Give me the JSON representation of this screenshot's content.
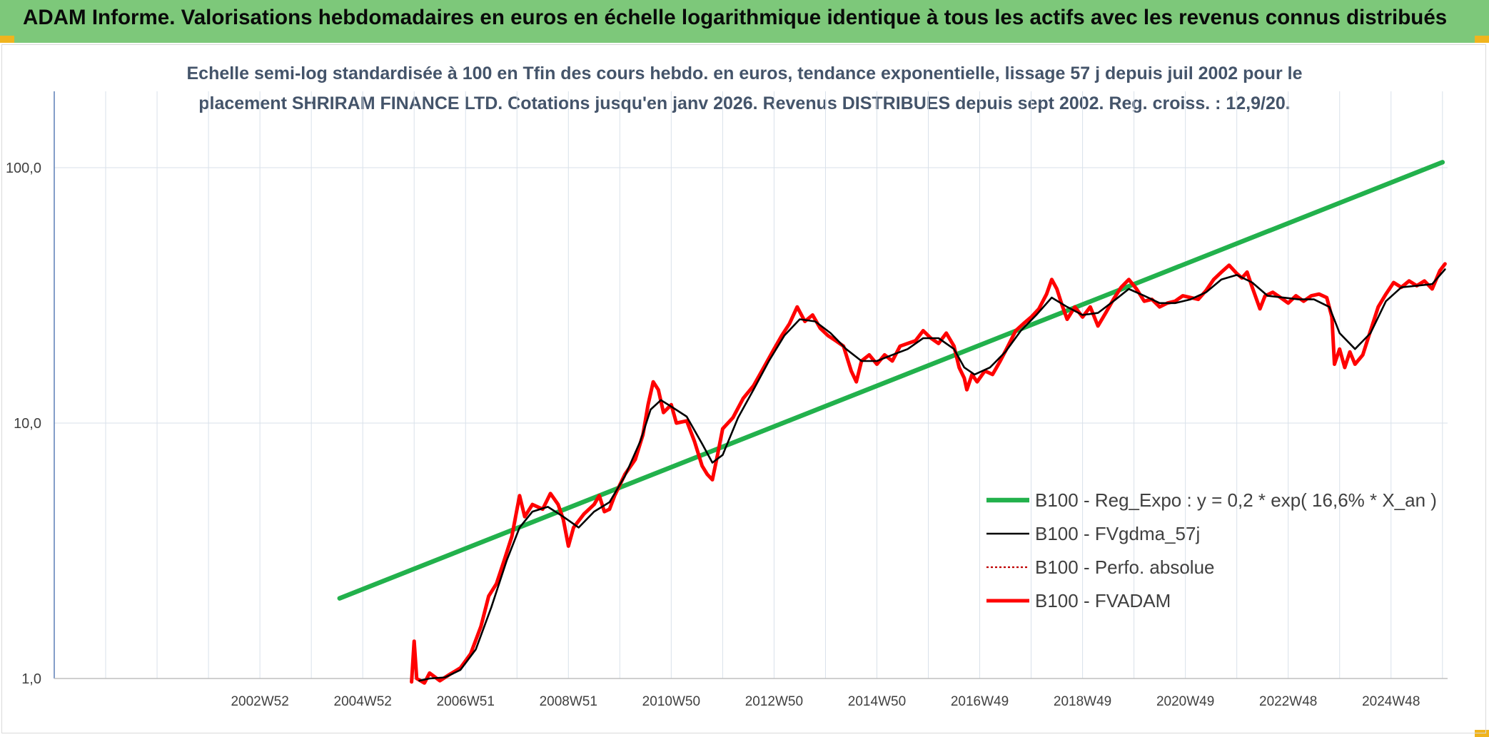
{
  "header": {
    "title": "ADAM Informe. Valorisations hebdomadaires en euros en échelle logarithmique identique à tous les actifs avec les revenus connus distribués"
  },
  "colors": {
    "header_bg": "#7dc87a",
    "regression": "#22b14c",
    "smoothed": "#000000",
    "absolute": "#c00000",
    "fvadam": "#ff0000",
    "grid": "#d9e1ea"
  },
  "chart_data": {
    "type": "line",
    "subtitle": [
      "Echelle semi-log standardisée à 100 en Tfin des cours hebdo. en euros, tendance exponentielle, lissage 57 j depuis juil 2002 pour le",
      "placement SHRIRAM FINANCE LTD. Cotations jusqu'en janv 2026. Revenus DISTRIBUES depuis sept 2002. Reg. croiss. : 12,9/20."
    ],
    "y_scale": "log",
    "ylim": [
      1,
      100
    ],
    "y_ticks": [
      "100,0",
      "10,0",
      "1,0"
    ],
    "x_range": [
      1999.0,
      2026.1
    ],
    "x_ticks": [
      {
        "label": "2002W52",
        "x": 2003.0
      },
      {
        "label": "2004W52",
        "x": 2005.0
      },
      {
        "label": "2006W51",
        "x": 2007.0
      },
      {
        "label": "2008W51",
        "x": 2009.0
      },
      {
        "label": "2010W50",
        "x": 2011.0
      },
      {
        "label": "2012W50",
        "x": 2013.0
      },
      {
        "label": "2014W50",
        "x": 2015.0
      },
      {
        "label": "2016W49",
        "x": 2017.0
      },
      {
        "label": "2018W49",
        "x": 2019.0
      },
      {
        "label": "2020W49",
        "x": 2021.0
      },
      {
        "label": "2022W48",
        "x": 2023.0
      },
      {
        "label": "2024W48",
        "x": 2025.0
      }
    ],
    "legend": {
      "placement": "lower-right",
      "entries": [
        {
          "key": "regression",
          "label": "B100 - Reg_Expo : y = 0,2 * exp( 16,6% *  X_an )"
        },
        {
          "key": "smoothed",
          "label": "B100 - FVgdma_57j"
        },
        {
          "key": "absolute",
          "label": "B100 - Perfo. absolue"
        },
        {
          "key": "fvadam",
          "label": "B100 - FVADAM"
        }
      ]
    },
    "series": [
      {
        "key": "regression",
        "name": "B100 - Reg_Expo : y = 0,2 * exp( 16,6% *  X_an )",
        "points": [
          [
            2004.55,
            2.06
          ],
          [
            2026.0,
            105.0
          ]
        ]
      },
      {
        "key": "fvadam",
        "name": "B100 - FVADAM",
        "points": [
          [
            2005.95,
            0.97
          ],
          [
            2006.0,
            1.4
          ],
          [
            2006.05,
            1.0
          ],
          [
            2006.2,
            0.96
          ],
          [
            2006.3,
            1.05
          ],
          [
            2006.5,
            0.98
          ],
          [
            2006.7,
            1.04
          ],
          [
            2006.9,
            1.1
          ],
          [
            2007.1,
            1.25
          ],
          [
            2007.3,
            1.6
          ],
          [
            2007.45,
            2.1
          ],
          [
            2007.6,
            2.35
          ],
          [
            2007.75,
            2.9
          ],
          [
            2007.9,
            3.6
          ],
          [
            2008.0,
            4.6
          ],
          [
            2008.05,
            5.2
          ],
          [
            2008.15,
            4.3
          ],
          [
            2008.3,
            4.8
          ],
          [
            2008.5,
            4.6
          ],
          [
            2008.65,
            5.3
          ],
          [
            2008.8,
            4.8
          ],
          [
            2008.9,
            4.2
          ],
          [
            2009.0,
            3.3
          ],
          [
            2009.1,
            3.9
          ],
          [
            2009.3,
            4.4
          ],
          [
            2009.5,
            4.8
          ],
          [
            2009.6,
            5.2
          ],
          [
            2009.7,
            4.5
          ],
          [
            2009.8,
            4.6
          ],
          [
            2009.9,
            5.2
          ],
          [
            2010.1,
            6.3
          ],
          [
            2010.3,
            7.2
          ],
          [
            2010.45,
            9.0
          ],
          [
            2010.55,
            11.8
          ],
          [
            2010.65,
            14.5
          ],
          [
            2010.75,
            13.5
          ],
          [
            2010.85,
            11.0
          ],
          [
            2011.0,
            11.8
          ],
          [
            2011.1,
            10.0
          ],
          [
            2011.3,
            10.2
          ],
          [
            2011.45,
            8.5
          ],
          [
            2011.6,
            6.8
          ],
          [
            2011.7,
            6.3
          ],
          [
            2011.8,
            6.0
          ],
          [
            2011.9,
            7.5
          ],
          [
            2012.0,
            9.5
          ],
          [
            2012.2,
            10.5
          ],
          [
            2012.4,
            12.5
          ],
          [
            2012.6,
            14.0
          ],
          [
            2012.8,
            16.5
          ],
          [
            2013.0,
            19.5
          ],
          [
            2013.15,
            22.0
          ],
          [
            2013.3,
            24.5
          ],
          [
            2013.45,
            28.5
          ],
          [
            2013.6,
            25.0
          ],
          [
            2013.75,
            26.5
          ],
          [
            2013.9,
            23.5
          ],
          [
            2014.05,
            22.0
          ],
          [
            2014.2,
            21.0
          ],
          [
            2014.35,
            20.0
          ],
          [
            2014.5,
            16.0
          ],
          [
            2014.6,
            14.5
          ],
          [
            2014.7,
            17.5
          ],
          [
            2014.85,
            18.5
          ],
          [
            2015.0,
            17.0
          ],
          [
            2015.15,
            18.5
          ],
          [
            2015.3,
            17.5
          ],
          [
            2015.45,
            20.0
          ],
          [
            2015.6,
            20.5
          ],
          [
            2015.75,
            21.0
          ],
          [
            2015.9,
            23.0
          ],
          [
            2016.05,
            21.5
          ],
          [
            2016.2,
            20.5
          ],
          [
            2016.35,
            22.5
          ],
          [
            2016.5,
            20.0
          ],
          [
            2016.6,
            16.5
          ],
          [
            2016.7,
            15.0
          ],
          [
            2016.75,
            13.5
          ],
          [
            2016.85,
            15.5
          ],
          [
            2016.95,
            14.5
          ],
          [
            2017.1,
            16.0
          ],
          [
            2017.25,
            15.5
          ],
          [
            2017.4,
            17.5
          ],
          [
            2017.55,
            20.0
          ],
          [
            2017.7,
            23.0
          ],
          [
            2017.85,
            24.5
          ],
          [
            2018.0,
            26.0
          ],
          [
            2018.15,
            28.0
          ],
          [
            2018.3,
            32.0
          ],
          [
            2018.4,
            36.5
          ],
          [
            2018.5,
            33.5
          ],
          [
            2018.6,
            29.0
          ],
          [
            2018.7,
            25.5
          ],
          [
            2018.85,
            28.5
          ],
          [
            2019.0,
            26.0
          ],
          [
            2019.15,
            28.5
          ],
          [
            2019.3,
            24.0
          ],
          [
            2019.45,
            27.0
          ],
          [
            2019.6,
            30.5
          ],
          [
            2019.75,
            34.0
          ],
          [
            2019.9,
            36.5
          ],
          [
            2020.05,
            33.5
          ],
          [
            2020.2,
            30.0
          ],
          [
            2020.35,
            30.5
          ],
          [
            2020.5,
            28.5
          ],
          [
            2020.65,
            29.5
          ],
          [
            2020.8,
            30.0
          ],
          [
            2020.95,
            31.5
          ],
          [
            2021.1,
            31.0
          ],
          [
            2021.25,
            30.5
          ],
          [
            2021.4,
            33.0
          ],
          [
            2021.55,
            36.5
          ],
          [
            2021.7,
            39.0
          ],
          [
            2021.85,
            41.5
          ],
          [
            2022.0,
            38.5
          ],
          [
            2022.1,
            37.0
          ],
          [
            2022.2,
            39.0
          ],
          [
            2022.3,
            34.0
          ],
          [
            2022.45,
            28.0
          ],
          [
            2022.55,
            31.5
          ],
          [
            2022.7,
            32.5
          ],
          [
            2022.85,
            31.0
          ],
          [
            2023.0,
            29.5
          ],
          [
            2023.15,
            31.5
          ],
          [
            2023.3,
            30.0
          ],
          [
            2023.45,
            31.5
          ],
          [
            2023.6,
            32.0
          ],
          [
            2023.75,
            31.0
          ],
          [
            2023.85,
            26.0
          ],
          [
            2023.9,
            17.0
          ],
          [
            2024.0,
            19.5
          ],
          [
            2024.1,
            16.5
          ],
          [
            2024.2,
            19.0
          ],
          [
            2024.3,
            17.0
          ],
          [
            2024.45,
            18.5
          ],
          [
            2024.6,
            23.0
          ],
          [
            2024.75,
            28.5
          ],
          [
            2024.9,
            32.0
          ],
          [
            2025.05,
            35.5
          ],
          [
            2025.2,
            34.0
          ],
          [
            2025.35,
            36.0
          ],
          [
            2025.5,
            34.5
          ],
          [
            2025.65,
            36.0
          ],
          [
            2025.8,
            33.5
          ],
          [
            2025.95,
            39.5
          ],
          [
            2026.05,
            42.0
          ]
        ]
      },
      {
        "key": "smoothed",
        "name": "B100 - FVgdma_57j",
        "points": [
          [
            2006.1,
            0.98
          ],
          [
            2006.3,
            1.0
          ],
          [
            2006.6,
            1.01
          ],
          [
            2006.9,
            1.08
          ],
          [
            2007.2,
            1.3
          ],
          [
            2007.5,
            1.9
          ],
          [
            2007.8,
            2.9
          ],
          [
            2008.05,
            3.9
          ],
          [
            2008.3,
            4.5
          ],
          [
            2008.6,
            4.7
          ],
          [
            2008.9,
            4.3
          ],
          [
            2009.2,
            3.9
          ],
          [
            2009.5,
            4.5
          ],
          [
            2009.8,
            4.9
          ],
          [
            2010.1,
            6.2
          ],
          [
            2010.4,
            8.5
          ],
          [
            2010.6,
            11.3
          ],
          [
            2010.8,
            12.3
          ],
          [
            2011.0,
            11.6
          ],
          [
            2011.3,
            10.6
          ],
          [
            2011.6,
            8.3
          ],
          [
            2011.8,
            7.0
          ],
          [
            2012.0,
            7.5
          ],
          [
            2012.3,
            10.5
          ],
          [
            2012.6,
            13.5
          ],
          [
            2012.9,
            17.5
          ],
          [
            2013.2,
            22.0
          ],
          [
            2013.5,
            25.5
          ],
          [
            2013.8,
            25.0
          ],
          [
            2014.1,
            22.5
          ],
          [
            2014.4,
            19.5
          ],
          [
            2014.7,
            17.5
          ],
          [
            2015.0,
            17.5
          ],
          [
            2015.3,
            18.5
          ],
          [
            2015.6,
            19.5
          ],
          [
            2015.9,
            21.5
          ],
          [
            2016.2,
            21.5
          ],
          [
            2016.5,
            19.5
          ],
          [
            2016.7,
            16.5
          ],
          [
            2016.9,
            15.5
          ],
          [
            2017.2,
            16.5
          ],
          [
            2017.5,
            19.0
          ],
          [
            2017.8,
            23.0
          ],
          [
            2018.1,
            26.5
          ],
          [
            2018.4,
            31.0
          ],
          [
            2018.7,
            28.5
          ],
          [
            2019.0,
            26.5
          ],
          [
            2019.3,
            27.0
          ],
          [
            2019.6,
            30.0
          ],
          [
            2019.9,
            33.5
          ],
          [
            2020.2,
            31.5
          ],
          [
            2020.5,
            29.5
          ],
          [
            2020.8,
            29.5
          ],
          [
            2021.1,
            30.5
          ],
          [
            2021.4,
            32.5
          ],
          [
            2021.7,
            36.5
          ],
          [
            2022.0,
            38.0
          ],
          [
            2022.3,
            35.5
          ],
          [
            2022.6,
            31.5
          ],
          [
            2022.9,
            31.0
          ],
          [
            2023.2,
            30.5
          ],
          [
            2023.5,
            30.5
          ],
          [
            2023.8,
            28.5
          ],
          [
            2024.0,
            22.5
          ],
          [
            2024.3,
            19.5
          ],
          [
            2024.6,
            22.5
          ],
          [
            2024.9,
            30.0
          ],
          [
            2025.2,
            34.0
          ],
          [
            2025.5,
            34.5
          ],
          [
            2025.8,
            35.0
          ],
          [
            2026.05,
            40.0
          ]
        ]
      }
    ]
  }
}
